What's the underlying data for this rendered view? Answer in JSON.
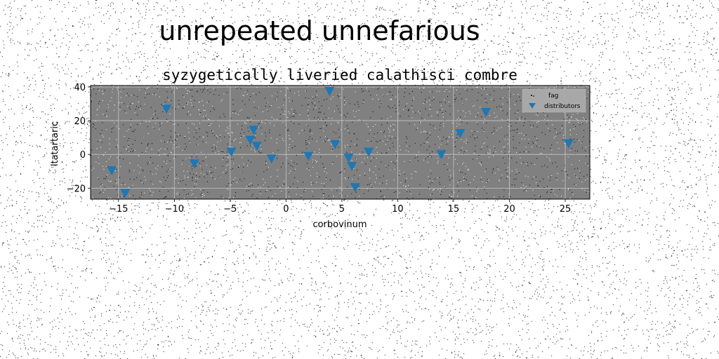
{
  "page": {
    "title": "unrepeated unnefarious"
  },
  "chart_data": {
    "type": "scatter",
    "title": "syzygetically liveried calathisci combre",
    "xlabel": "corbovinum",
    "ylabel": "ltatartaric",
    "xlim": [
      -17.5,
      27.2
    ],
    "ylim": [
      -26.5,
      40.8
    ],
    "xticks": [
      -15,
      -10,
      -5,
      0,
      5,
      10,
      15,
      20,
      25
    ],
    "yticks": [
      -20,
      0,
      20,
      40
    ],
    "xtick_labels": [
      "−15",
      "−10",
      "−5",
      "0",
      "5",
      "10",
      "15",
      "20",
      "25"
    ],
    "ytick_labels": [
      "−20",
      "0",
      "20",
      "40"
    ],
    "grid": true,
    "legend_position": "top-right",
    "colors": {
      "background": "#808080",
      "marker": "#1f77b4",
      "grid": "#c8c8c8",
      "legend_bg": "#a8a8a8"
    },
    "series": [
      {
        "name": "fag",
        "marker": "dot",
        "description_note": "dense noise points",
        "points": []
      },
      {
        "name": "distributors",
        "marker": "triangle-down",
        "points": [
          {
            "x": -15.6,
            "y": -9.5
          },
          {
            "x": -14.4,
            "y": -23.0
          },
          {
            "x": -10.7,
            "y": 27.0
          },
          {
            "x": -8.2,
            "y": -5.5
          },
          {
            "x": -4.9,
            "y": 1.5
          },
          {
            "x": -3.2,
            "y": 8.5
          },
          {
            "x": -2.9,
            "y": 14.5
          },
          {
            "x": -2.6,
            "y": 5.0
          },
          {
            "x": -1.3,
            "y": -2.5
          },
          {
            "x": 2.0,
            "y": -1.0
          },
          {
            "x": 3.9,
            "y": 37.5
          },
          {
            "x": 4.4,
            "y": 6.0
          },
          {
            "x": 5.6,
            "y": -2.0
          },
          {
            "x": 5.9,
            "y": -7.0
          },
          {
            "x": 6.2,
            "y": -19.5
          },
          {
            "x": 7.4,
            "y": 1.5
          },
          {
            "x": 13.9,
            "y": 0.0
          },
          {
            "x": 15.6,
            "y": 12.5
          },
          {
            "x": 17.9,
            "y": 25.0
          },
          {
            "x": 25.3,
            "y": 6.5
          }
        ]
      }
    ]
  }
}
